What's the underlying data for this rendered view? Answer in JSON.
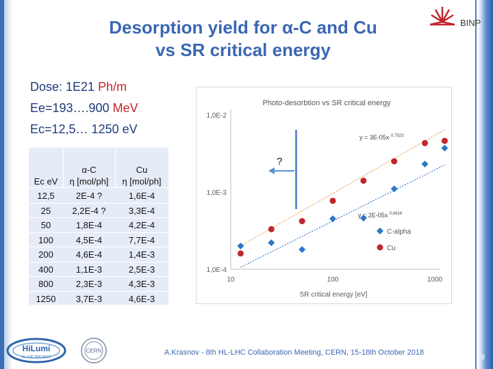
{
  "title": {
    "line1": "Desorption yield for α-C and Cu",
    "line2": "vs SR critical energy"
  },
  "logo": {
    "text": "BINP"
  },
  "params": {
    "dose_label": "Dose: 1E21 ",
    "dose_unit": "Ph/m",
    "ee_label": "Ee=193….900 ",
    "ee_unit": "MeV",
    "ec_label": "Ec=12,5… 1250 eV"
  },
  "table": {
    "headers": {
      "col1": "Ec eV",
      "col2_top": "α-C",
      "col2_bottom": "η [mol/ph]",
      "col3_top": "Cu",
      "col3_bottom": "η [mol/ph]"
    },
    "rows": [
      {
        "ec": "12,5",
        "ac": "2E-4 ?",
        "cu": "1,6E-4"
      },
      {
        "ec": "25",
        "ac": "2,2E-4 ?",
        "cu": "3,3E-4"
      },
      {
        "ec": "50",
        "ac": "1,8E-4",
        "cu": "4,2E-4"
      },
      {
        "ec": "100",
        "ac": "4,5E-4",
        "cu": "7,7E-4"
      },
      {
        "ec": "200",
        "ac": "4,6E-4",
        "cu": "1,4E-3"
      },
      {
        "ec": "400",
        "ac": "1,1E-3",
        "cu": "2,5E-3"
      },
      {
        "ec": "800",
        "ac": "2,3E-3",
        "cu": "4,3E-3"
      },
      {
        "ec": "1250",
        "ac": "3,7E-3",
        "cu": "4,6E-3"
      }
    ]
  },
  "annotation": {
    "question": "?"
  },
  "chart_data": {
    "type": "scatter",
    "title": "Photo-desorbtion vs SR critical energy",
    "xlabel": "SR critical energy [eV]",
    "ylabel": "",
    "xscale": "log",
    "yscale": "log",
    "xlim": [
      10,
      1000
    ],
    "ylim": [
      0.0001,
      0.01
    ],
    "x_ticks": [
      "10",
      "100",
      "1000"
    ],
    "y_ticks": [
      "1,0E-4",
      "1,0E-3",
      "1,0E-2"
    ],
    "series": [
      {
        "name": "C-alpha",
        "color": "#2e75c8",
        "marker": "diamond",
        "x": [
          12.5,
          25,
          50,
          100,
          200,
          400,
          800,
          1250
        ],
        "y": [
          0.0002,
          0.00022,
          0.00018,
          0.00045,
          0.00046,
          0.0011,
          0.0023,
          0.0037
        ],
        "fit_label": "y = 2E-05x",
        "fit_exp": "0,6616",
        "fit_a": 2e-05,
        "fit_b": 0.6616,
        "fit_color": "#3a78c9"
      },
      {
        "name": "Cu",
        "color": "#c0262c",
        "marker": "circle",
        "x": [
          12.5,
          25,
          50,
          100,
          200,
          400,
          800,
          1250
        ],
        "y": [
          0.00016,
          0.00033,
          0.00042,
          0.00077,
          0.0014,
          0.0025,
          0.0043,
          0.0046
        ],
        "fit_label": "y = 3E-05x",
        "fit_exp": "0,7523",
        "fit_a": 3e-05,
        "fit_b": 0.7523,
        "fit_color": "#e7a05a"
      }
    ],
    "legend": [
      "C-alpha",
      "Cu"
    ],
    "legend_position": "right"
  },
  "footer": {
    "text": "A.Krasnov - 8th HL-LHC Collaboration Meeting, CERN, 15-18th October 2018",
    "page": "9"
  },
  "hilumi": {
    "text": "HiLumi",
    "sub": "HL-LHC PROJECT"
  },
  "cern": {
    "text": "CERN"
  }
}
